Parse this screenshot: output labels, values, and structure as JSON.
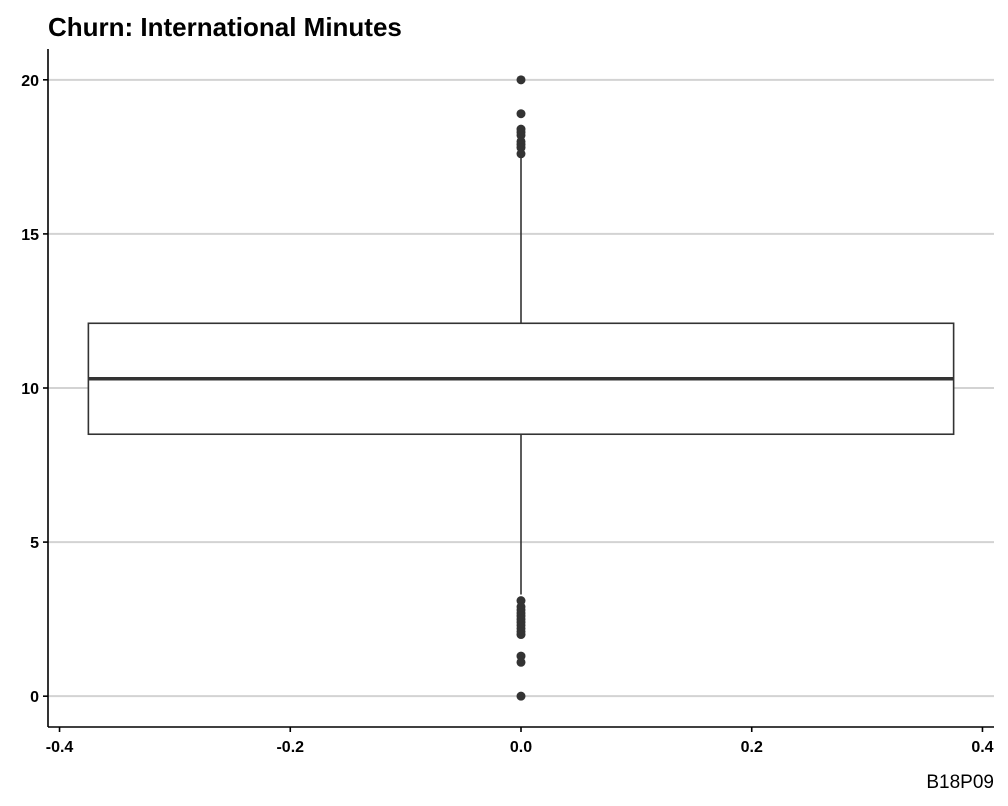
{
  "chart_data": {
    "type": "box",
    "title": "Churn: International Minutes",
    "xlabel": "",
    "ylabel": "",
    "caption": "B18P09",
    "xlim": [
      -0.41,
      0.41
    ],
    "ylim": [
      -1.0,
      21.0
    ],
    "x_ticks": [
      -0.4,
      -0.2,
      0.0,
      0.2,
      0.4
    ],
    "x_tick_labels": [
      "-0.4",
      "-0.2",
      "0.0",
      "0.2",
      "0.4"
    ],
    "y_ticks": [
      0,
      5,
      10,
      15,
      20
    ],
    "y_tick_labels": [
      "0",
      "5",
      "10",
      "15",
      "20"
    ],
    "grid": "horizontal major",
    "box": {
      "x_left": -0.375,
      "x_right": 0.375,
      "q1": 8.5,
      "median": 10.3,
      "q3": 12.1,
      "whisker_low": 3.3,
      "whisker_high": 17.5,
      "x": 0.0
    },
    "outliers": [
      20.0,
      18.9,
      18.4,
      18.3,
      18.2,
      18.0,
      17.9,
      17.8,
      17.6,
      3.1,
      2.9,
      2.8,
      2.7,
      2.6,
      2.5,
      2.4,
      2.3,
      2.2,
      2.1,
      2.0,
      1.3,
      1.1,
      0.0
    ],
    "colors": {
      "box_outline": "#333333",
      "median_line": "#333333",
      "whisker": "#333333",
      "point": "#333333",
      "grid": "#d3d3d3",
      "axis": "#000000"
    }
  }
}
